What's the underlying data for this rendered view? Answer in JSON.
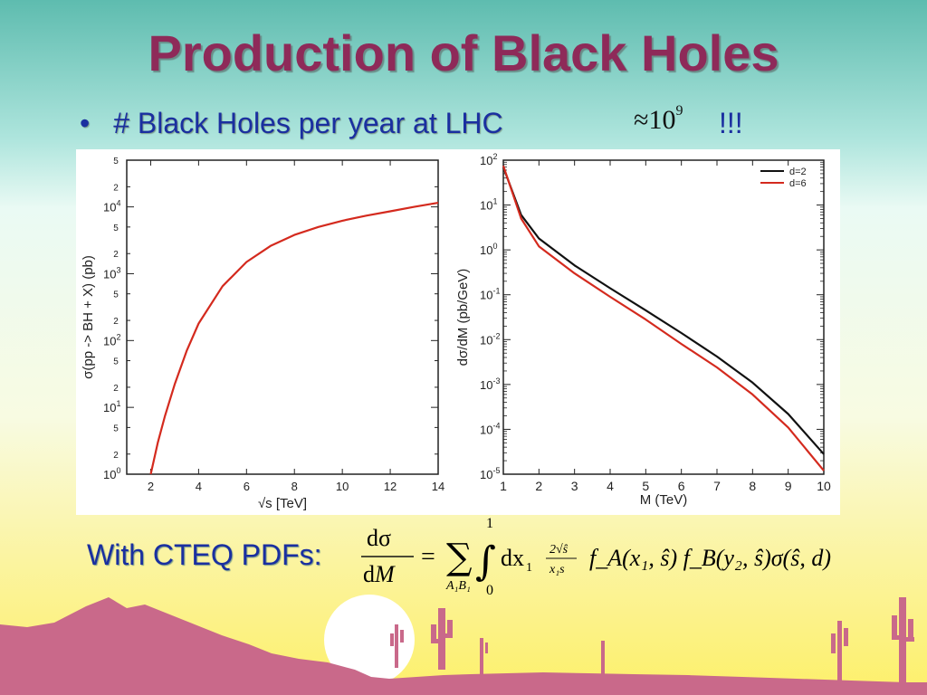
{
  "slide": {
    "title": "Production of Black Holes",
    "bullet_marker": "•",
    "bullet_text": "# Black Holes per year at LHC",
    "approx_symbol": "≈",
    "approx_base": "10",
    "approx_exp": "9",
    "exclaim": "!!!",
    "pdf_label": "With CTEQ PDFs:"
  },
  "formula": {
    "lhs_num": "dσ",
    "lhs_den_d": "d",
    "lhs_den_var": "M",
    "equals": "=",
    "sum": "∑",
    "sum_sub": "A₁B₁",
    "int": "∫",
    "int_upper": "1",
    "int_lower": "0",
    "dx": "dx",
    "dx_sub": "1",
    "frac_num": "2√ŝ",
    "frac_den": "x₁s",
    "body": "f_A(x₁, ŝ) f_B(y₂, ŝ)σ(ŝ, d)"
  },
  "colors": {
    "title": "#8e2a59",
    "bullet": "#1a2fa0",
    "curve_red": "#d42a1e",
    "curve_black": "#111111",
    "mountain": "#c9698a"
  },
  "chart_data": [
    {
      "type": "line",
      "xlabel": "√s [TeV]",
      "ylabel": "σ(pp -> BH + X) (pb)",
      "xlim": [
        1,
        14
      ],
      "ylim": [
        1,
        50000
      ],
      "yscale": "log",
      "xticks": [
        2,
        4,
        6,
        8,
        10,
        12,
        14
      ],
      "xtick_labels": [
        "2",
        "4",
        "6",
        "8",
        "10",
        "12",
        "14"
      ],
      "ymajor": [
        {
          "v": 1,
          "base": "10",
          "exp": "0"
        },
        {
          "v": 10,
          "base": "10",
          "exp": "1"
        },
        {
          "v": 100,
          "base": "10",
          "exp": "2"
        },
        {
          "v": 1000,
          "base": "10",
          "exp": "3"
        },
        {
          "v": 10000,
          "base": "10",
          "exp": "4"
        }
      ],
      "yminor": [
        {
          "v": 2,
          "label": "2"
        },
        {
          "v": 5,
          "label": "5"
        },
        {
          "v": 20,
          "label": "2"
        },
        {
          "v": 50,
          "label": "5"
        },
        {
          "v": 200,
          "label": "2"
        },
        {
          "v": 500,
          "label": "5"
        },
        {
          "v": 2000,
          "label": "2"
        },
        {
          "v": 5000,
          "label": "5"
        },
        {
          "v": 20000,
          "label": "2"
        },
        {
          "v": 50000,
          "label": "5"
        }
      ],
      "series": [
        {
          "color": "#d42a1e",
          "x": [
            2,
            2.3,
            2.6,
            3,
            3.5,
            4,
            5,
            6,
            7,
            8,
            9,
            10,
            11,
            12,
            13,
            14
          ],
          "y": [
            1.0,
            3.0,
            7.5,
            22,
            70,
            180,
            650,
            1500,
            2600,
            3800,
            5000,
            6200,
            7400,
            8600,
            10000,
            11500
          ]
        }
      ]
    },
    {
      "type": "line",
      "xlabel": "M (TeV)",
      "ylabel": "dσ/dM (pb/GeV)",
      "xlim": [
        1,
        10
      ],
      "ylim": [
        1e-05,
        100
      ],
      "yscale": "log",
      "xticks": [
        1,
        2,
        3,
        4,
        5,
        6,
        7,
        8,
        9,
        10
      ],
      "xtick_labels": [
        "1",
        "2",
        "3",
        "4",
        "5",
        "6",
        "7",
        "8",
        "9",
        "10"
      ],
      "ymajor": [
        {
          "v": 100,
          "base": "10",
          "exp": "2"
        },
        {
          "v": 10,
          "base": "10",
          "exp": "1"
        },
        {
          "v": 1,
          "base": "10",
          "exp": "0"
        },
        {
          "v": 0.1,
          "base": "10",
          "exp": "-1"
        },
        {
          "v": 0.01,
          "base": "10",
          "exp": "-2"
        },
        {
          "v": 0.001,
          "base": "10",
          "exp": "-3"
        },
        {
          "v": 0.0001,
          "base": "10",
          "exp": "-4"
        },
        {
          "v": 1e-05,
          "base": "10",
          "exp": "-5"
        }
      ],
      "legend_position": "top-right",
      "series": [
        {
          "name": "d=2",
          "color": "#111111",
          "x": [
            1,
            1.5,
            2,
            3,
            4,
            5,
            6,
            7,
            8,
            9,
            10
          ],
          "y": [
            70,
            6,
            1.8,
            0.45,
            0.14,
            0.045,
            0.014,
            0.0042,
            0.0011,
            0.00022,
            2.8e-05
          ]
        },
        {
          "name": "d=6",
          "color": "#d42a1e",
          "x": [
            1,
            1.5,
            2,
            3,
            4,
            5,
            6,
            7,
            8,
            9,
            10
          ],
          "y": [
            75,
            5,
            1.2,
            0.3,
            0.09,
            0.028,
            0.008,
            0.0024,
            0.0006,
            0.00011,
            1.2e-05
          ]
        }
      ]
    }
  ]
}
